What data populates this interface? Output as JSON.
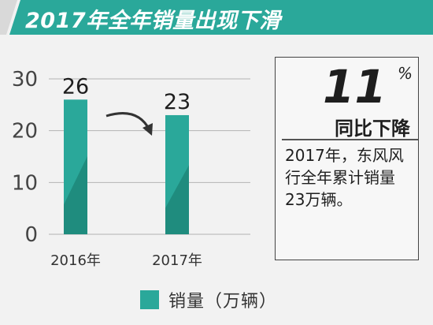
{
  "banner": {
    "title": "2017年全年销量出现下滑",
    "color": "#2aa89a",
    "accent": "#d9d9d9"
  },
  "chart_data": {
    "type": "bar",
    "categories": [
      "2016年",
      "2017年"
    ],
    "values": [
      26,
      23
    ],
    "data_labels": [
      "26",
      "23"
    ],
    "yticks": [
      "0",
      "10",
      "20",
      "30"
    ],
    "ylim": [
      0,
      30
    ],
    "grid": true,
    "legend": "bottom",
    "series": [
      {
        "name": "销量（万辆）",
        "values": [
          26,
          23
        ]
      }
    ],
    "bar_color": "#2aa89a",
    "bar_shade": "#1f8c7e",
    "annotation_icon": "curved-arrow-icon"
  },
  "stat": {
    "number": "11",
    "unit": "%",
    "label": "同比下降",
    "description": "2017年，东风风行全年累计销量23万辆。"
  },
  "legend": {
    "label": "销量（万辆）"
  }
}
